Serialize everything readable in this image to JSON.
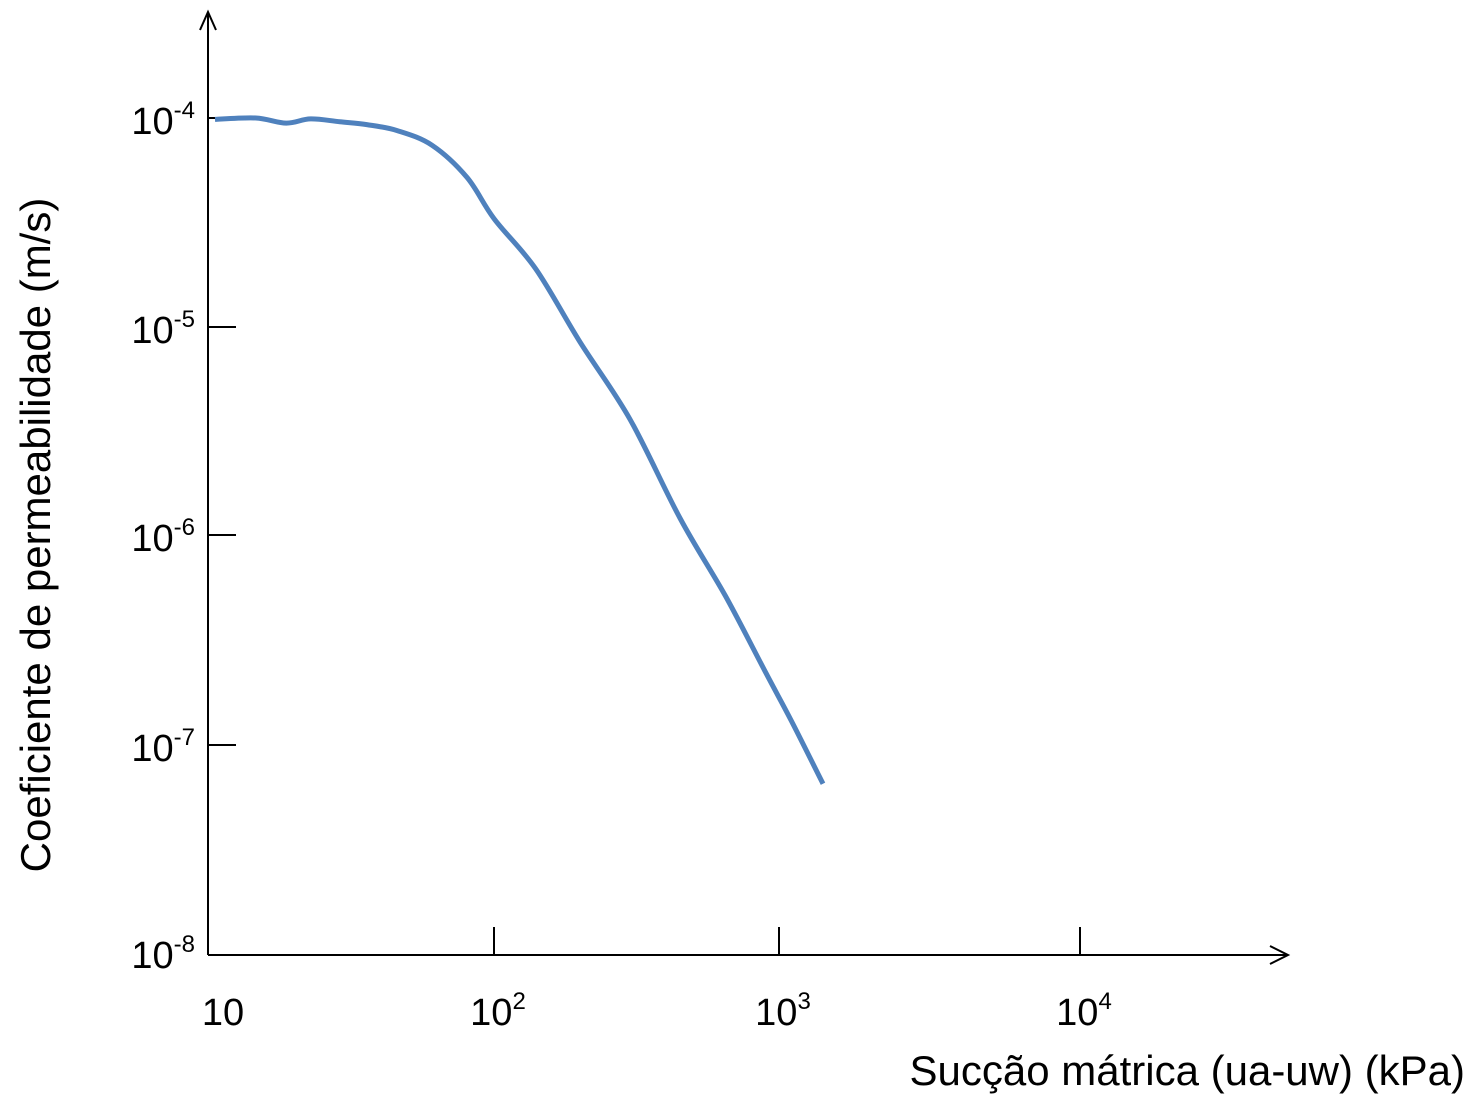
{
  "chart_data": {
    "type": "line",
    "xlabel": "Sucção mátrica (ua-uw)  (kPa)",
    "ylabel": "Coeficiente de permeabilidade  (m/s)",
    "x_scale": "log",
    "y_scale": "log",
    "x_ticks": [
      {
        "value": 10,
        "base": "10",
        "exp": ""
      },
      {
        "value": 100,
        "base": "10",
        "exp": "2"
      },
      {
        "value": 1000,
        "base": "10",
        "exp": "3"
      },
      {
        "value": 10000,
        "base": "10",
        "exp": "4"
      }
    ],
    "y_ticks": [
      {
        "value": 0.0001,
        "base": "10",
        "exp": "-4"
      },
      {
        "value": 1e-05,
        "base": "10",
        "exp": "-5"
      },
      {
        "value": 1e-06,
        "base": "10",
        "exp": "-6"
      },
      {
        "value": 1e-07,
        "base": "10",
        "exp": "-7"
      },
      {
        "value": 1e-08,
        "base": "10",
        "exp": "-8"
      }
    ],
    "series": [
      {
        "color": "#4f81bd",
        "x": [
          10,
          14,
          18,
          22,
          28,
          35,
          45,
          60,
          80,
          100,
          140,
          200,
          300,
          450,
          650,
          900,
          1100,
          1400
        ],
        "y": [
          9.85e-05,
          0.0001,
          0.000101,
          9.9e-05,
          9.6e-05,
          9.3e-05,
          8.7e-05,
          7.4e-05,
          5.2e-05,
          3.3e-05,
          1.9e-05,
          8.5e-06,
          3.6e-06,
          1.2e-06,
          5.1e-07,
          2.2e-07,
          1.3e-07,
          6.5e-08
        ]
      }
    ],
    "grid": false,
    "legend": "none"
  }
}
